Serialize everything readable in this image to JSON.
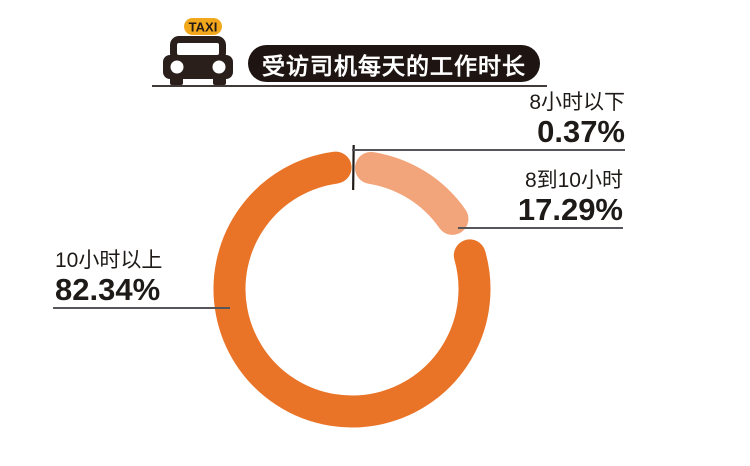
{
  "header": {
    "taxi_sign": "TAXI",
    "title": "受访司机每天的工作时长"
  },
  "chart_data": {
    "type": "pie",
    "variant": "donut",
    "title": "受访司机每天的工作时长",
    "categories": [
      "8小时以下",
      "8到10小时",
      "10小时以上"
    ],
    "values": [
      0.37,
      17.29,
      82.34
    ],
    "unit": "percent",
    "start_angle_deg": 0,
    "direction": "clockwise",
    "segment_colors": [
      "#1e1a18",
      "#f2a47a",
      "#e97428"
    ],
    "legend_position": "callouts",
    "callouts": [
      {
        "category": "8小时以下",
        "value": "0.37%"
      },
      {
        "category": "8到10小时",
        "value": "17.29%"
      },
      {
        "category": "10小时以上",
        "value": "82.34%"
      }
    ]
  },
  "colors": {
    "background": "#ffffff",
    "text": "#1e1a18",
    "leader_line": "#55565a",
    "title_pill_bg": "#1e1512",
    "title_pill_text": "#ffffff",
    "taxi_sign_bg": "#f2a81d",
    "taxi_body": "#2a1f1b"
  }
}
